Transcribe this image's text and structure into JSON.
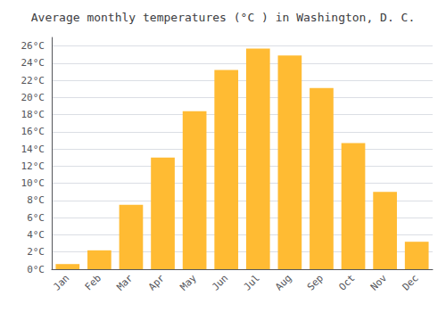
{
  "chart_data": {
    "type": "bar",
    "title": "Average monthly temperatures (°C ) in Washington, D. C.",
    "categories": [
      "Jan",
      "Feb",
      "Mar",
      "Apr",
      "May",
      "Jun",
      "Jul",
      "Aug",
      "Sep",
      "Oct",
      "Nov",
      "Dec"
    ],
    "values": [
      0.6,
      2.2,
      7.5,
      13.0,
      18.4,
      23.2,
      25.7,
      24.9,
      21.1,
      14.7,
      9.0,
      3.2
    ],
    "color": "#FFBB33",
    "ylim": [
      0,
      27
    ],
    "yticks": [
      {
        "value": 0,
        "label": "0°C"
      },
      {
        "value": 2,
        "label": "2°C"
      },
      {
        "value": 4,
        "label": "4°C"
      },
      {
        "value": 6,
        "label": "6°C"
      },
      {
        "value": 8,
        "label": "8°C"
      },
      {
        "value": 10,
        "label": "10°C"
      },
      {
        "value": 12,
        "label": "12°C"
      },
      {
        "value": 14,
        "label": "14°C"
      },
      {
        "value": 16,
        "label": "16°C"
      },
      {
        "value": 18,
        "label": "18°C"
      },
      {
        "value": 20,
        "label": "20°C"
      },
      {
        "value": 22,
        "label": "22°C"
      },
      {
        "value": 24,
        "label": "24°C"
      },
      {
        "value": 26,
        "label": "26°C"
      }
    ],
    "grid": true
  }
}
